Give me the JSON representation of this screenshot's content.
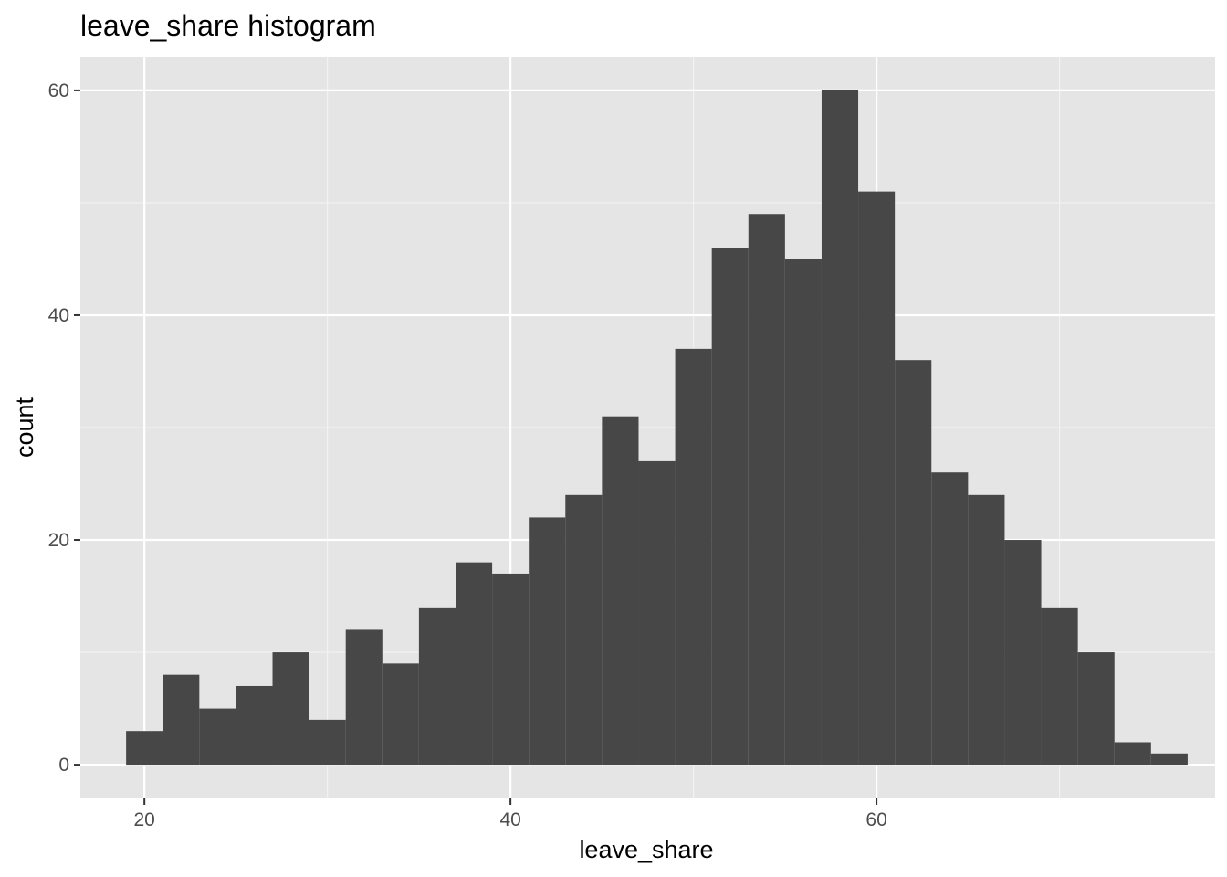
{
  "chart_data": {
    "type": "bar",
    "subtype": "histogram",
    "title": "leave_share histogram",
    "xlabel": "leave_share",
    "ylabel": "count",
    "xlim": [
      16.5,
      78.5
    ],
    "ylim": [
      -3,
      63
    ],
    "x_ticks": [
      20,
      40,
      60
    ],
    "y_ticks": [
      0,
      20,
      40,
      60
    ],
    "grid": true,
    "bin_width": 2,
    "bin_start": 19,
    "bins": [
      {
        "x0": 19,
        "x1": 21,
        "count": 3
      },
      {
        "x0": 21,
        "x1": 23,
        "count": 8
      },
      {
        "x0": 23,
        "x1": 25,
        "count": 5
      },
      {
        "x0": 25,
        "x1": 27,
        "count": 7
      },
      {
        "x0": 27,
        "x1": 29,
        "count": 10
      },
      {
        "x0": 29,
        "x1": 31,
        "count": 4
      },
      {
        "x0": 31,
        "x1": 33,
        "count": 12
      },
      {
        "x0": 33,
        "x1": 35,
        "count": 9
      },
      {
        "x0": 35,
        "x1": 37,
        "count": 14
      },
      {
        "x0": 37,
        "x1": 39,
        "count": 18
      },
      {
        "x0": 39,
        "x1": 41,
        "count": 17
      },
      {
        "x0": 41,
        "x1": 43,
        "count": 22
      },
      {
        "x0": 43,
        "x1": 45,
        "count": 24
      },
      {
        "x0": 45,
        "x1": 47,
        "count": 31
      },
      {
        "x0": 47,
        "x1": 49,
        "count": 27
      },
      {
        "x0": 49,
        "x1": 51,
        "count": 37
      },
      {
        "x0": 51,
        "x1": 53,
        "count": 46
      },
      {
        "x0": 53,
        "x1": 55,
        "count": 49
      },
      {
        "x0": 55,
        "x1": 57,
        "count": 45
      },
      {
        "x0": 57,
        "x1": 59,
        "count": 60
      },
      {
        "x0": 59,
        "x1": 61,
        "count": 51
      },
      {
        "x0": 61,
        "x1": 63,
        "count": 36
      },
      {
        "x0": 63,
        "x1": 65,
        "count": 26
      },
      {
        "x0": 65,
        "x1": 67,
        "count": 24
      },
      {
        "x0": 67,
        "x1": 69,
        "count": 20
      },
      {
        "x0": 69,
        "x1": 71,
        "count": 14
      },
      {
        "x0": 71,
        "x1": 73,
        "count": 10
      },
      {
        "x0": 73,
        "x1": 75,
        "count": 2
      },
      {
        "x0": 75,
        "x1": 77,
        "count": 1
      }
    ]
  },
  "colors": {
    "panel_background": "#e5e5e5",
    "grid_major": "#ffffff",
    "grid_minor": "#f2f2f2",
    "bar_fill": "#474747",
    "tick_text": "#4d4d4d",
    "tick_mark": "#333333"
  }
}
